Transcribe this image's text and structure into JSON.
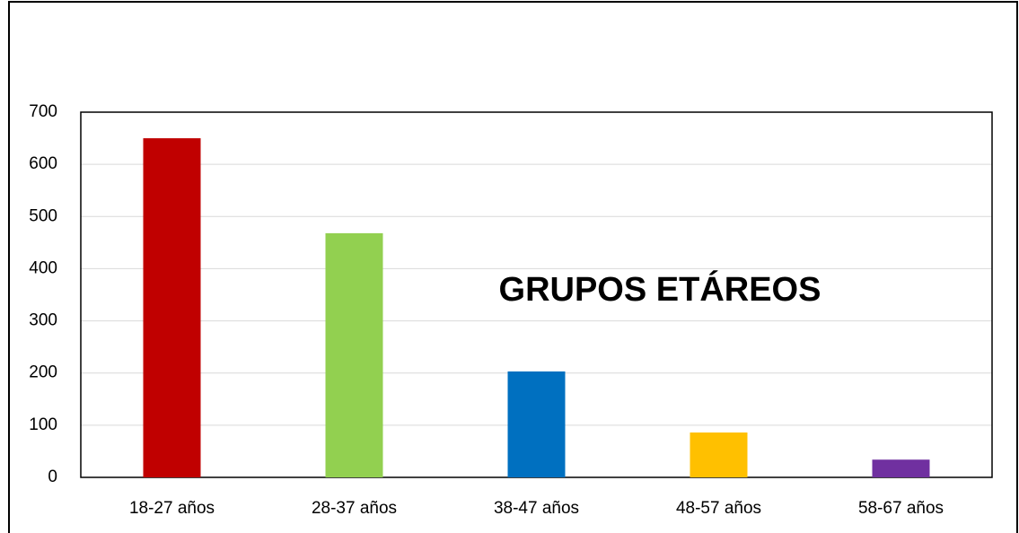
{
  "chart_data": {
    "type": "bar",
    "title": "GRUPOS ETÁREOS",
    "categories": [
      "18-27 años",
      "28-37 años",
      "38-47 años",
      "48-57 años",
      "58-67 años"
    ],
    "values": [
      650,
      468,
      203,
      86,
      34
    ],
    "colors": [
      "#c00000",
      "#92d050",
      "#0070c0",
      "#ffc000",
      "#7030a0"
    ],
    "ylim": [
      0,
      700
    ],
    "yticks": [
      0,
      100,
      200,
      300,
      400,
      500,
      600,
      700
    ],
    "grid": true
  }
}
